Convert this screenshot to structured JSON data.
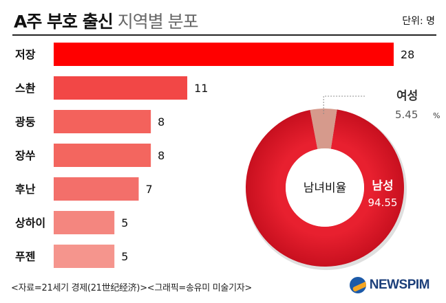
{
  "header": {
    "title_bold": "A주 부호 출신",
    "title_light": "지역별 분포",
    "unit": "단위: 명"
  },
  "chart_data": [
    {
      "type": "bar",
      "orientation": "horizontal",
      "categories": [
        "저장",
        "스촨",
        "광둥",
        "장쑤",
        "후난",
        "상하이",
        "푸젠"
      ],
      "values": [
        28,
        11,
        8,
        8,
        7,
        5,
        5
      ],
      "xlim": [
        0,
        28
      ],
      "grid": false,
      "colors": [
        "#ff0000",
        "#f24746",
        "#f3625c",
        "#f3665f",
        "#f36f6a",
        "#f4867f",
        "#f5958d"
      ]
    },
    {
      "type": "pie",
      "donut": true,
      "center_label": "남녀비율",
      "unit": "%",
      "slices": [
        {
          "name": "남성",
          "value": 94.55,
          "value_text": "94.55",
          "color": "#d8192c"
        },
        {
          "name": "여성",
          "value": 5.45,
          "value_text": "5.45",
          "color": "#d69a8c"
        }
      ]
    }
  ],
  "footer": {
    "source": "<자료=21세기 경제(21世纪经济)><그래픽=송유미 미술기자>"
  },
  "logo": {
    "text": "NEWSPIM",
    "icon": "newspim-logo-icon"
  }
}
